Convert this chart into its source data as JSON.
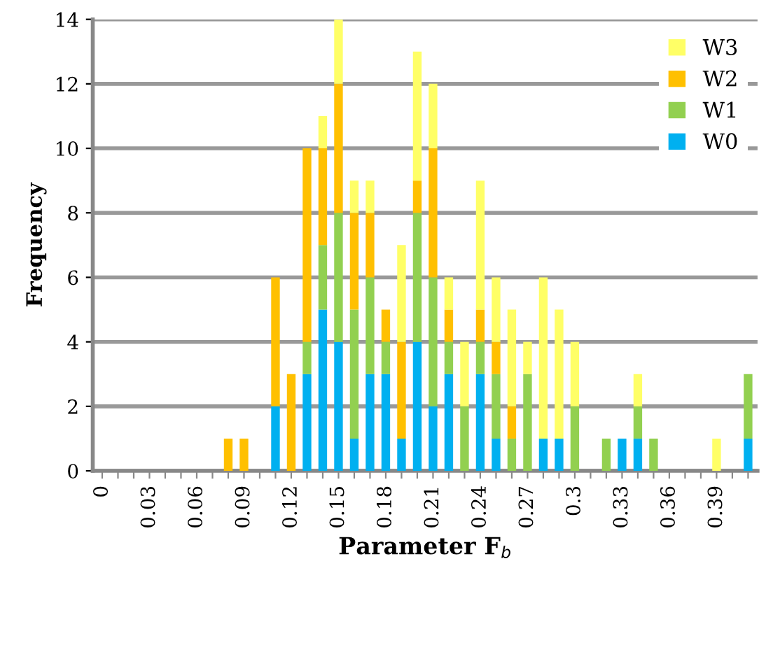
{
  "chart_data": {
    "type": "bar",
    "stacked": true,
    "xlabel": "Parameter F$_{b}$",
    "ylabel": "Frequency",
    "categories": [
      "0",
      null,
      null,
      "0.03",
      null,
      null,
      "0.06",
      null,
      null,
      "0.09",
      null,
      null,
      "0.12",
      null,
      null,
      "0.15",
      null,
      null,
      "0.18",
      null,
      null,
      "0.21",
      null,
      null,
      "0.24",
      null,
      null,
      "0.27",
      null,
      null,
      "0.3",
      null,
      null,
      "0.33",
      null,
      null,
      "0.36",
      null,
      null,
      "0.39",
      null,
      null
    ],
    "series": [
      {
        "name": "W0",
        "color": "#00b0f0",
        "values": [
          0,
          0,
          0,
          0,
          0,
          0,
          0,
          0,
          0,
          0,
          0,
          2,
          0,
          3,
          5,
          4,
          1,
          3,
          3,
          1,
          4,
          2,
          3,
          0,
          3,
          1,
          0,
          0,
          1,
          1,
          0,
          0,
          0,
          1,
          1,
          0,
          0,
          0,
          0,
          0,
          0,
          1
        ]
      },
      {
        "name": "W1",
        "color": "#92d050",
        "values": [
          0,
          0,
          0,
          0,
          0,
          0,
          0,
          0,
          0,
          0,
          0,
          0,
          0,
          1,
          2,
          4,
          4,
          3,
          1,
          0,
          4,
          4,
          1,
          2,
          1,
          2,
          1,
          3,
          0,
          0,
          2,
          0,
          1,
          0,
          1,
          1,
          0,
          0,
          0,
          0,
          0,
          2
        ]
      },
      {
        "name": "W2",
        "color": "#ffc000",
        "values": [
          0,
          0,
          0,
          0,
          0,
          0,
          0,
          0,
          1,
          1,
          0,
          4,
          3,
          6,
          3,
          4,
          3,
          2,
          1,
          3,
          1,
          4,
          1,
          0,
          1,
          1,
          1,
          0,
          0,
          0,
          0,
          0,
          0,
          0,
          0,
          0,
          0,
          0,
          0,
          0,
          0,
          0
        ]
      },
      {
        "name": "W3",
        "color": "#ffff66",
        "values": [
          0,
          0,
          0,
          0,
          0,
          0,
          0,
          0,
          0,
          0,
          0,
          0,
          0,
          0,
          1,
          2,
          1,
          1,
          0,
          3,
          4,
          2,
          1,
          2,
          4,
          2,
          3,
          1,
          5,
          4,
          2,
          0,
          0,
          0,
          1,
          0,
          0,
          0,
          0,
          1,
          0,
          0
        ]
      }
    ],
    "ylim": [
      0,
      14
    ],
    "yticks": [
      0,
      2,
      4,
      6,
      8,
      10,
      12,
      14
    ],
    "grid": "y",
    "legend": "top right"
  }
}
